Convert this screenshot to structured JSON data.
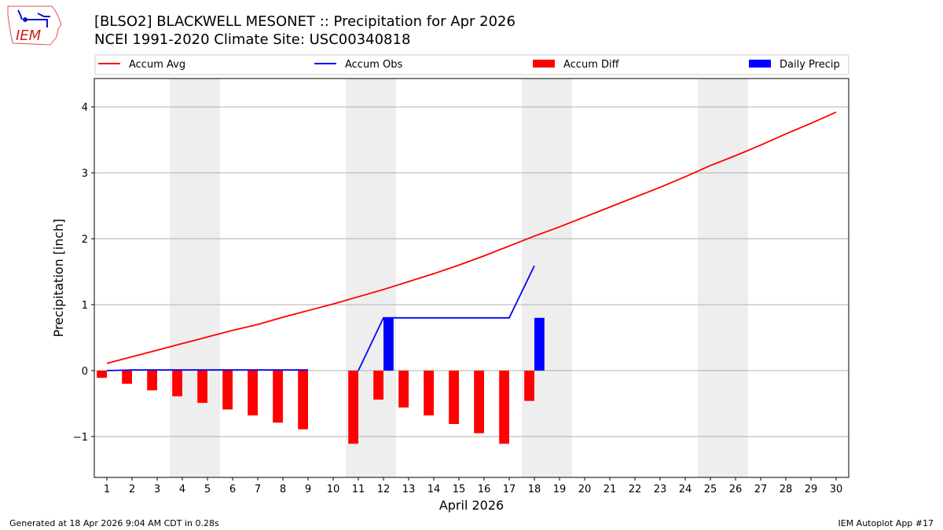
{
  "header": {
    "title_line1": "[BLSO2] BLACKWELL MESONET :: Precipitation for Apr 2026",
    "title_line2": "NCEI 1991-2020 Climate Site: USC00340818",
    "logo_text": "IEM"
  },
  "footer": {
    "left": "Generated at 18 Apr 2026 9:04 AM CDT in 0.28s",
    "right": "IEM Autoplot App #17"
  },
  "chart_data": {
    "type": "bar",
    "xlabel": "April 2026",
    "ylabel": "Precipitation [inch]",
    "xlim": [
      0.5,
      30.5
    ],
    "ylim": [
      -1.62,
      4.43
    ],
    "yticks": [
      -1,
      0,
      1,
      2,
      3,
      4
    ],
    "ytick_labels": [
      "−1",
      "0",
      "1",
      "2",
      "3",
      "4"
    ],
    "grid": "horizontal",
    "legend_placement": "top",
    "weekend_shading": [
      [
        3.5,
        5.5
      ],
      [
        10.5,
        12.5
      ],
      [
        17.5,
        19.5
      ],
      [
        24.5,
        26.5
      ]
    ],
    "days": [
      1,
      2,
      3,
      4,
      5,
      6,
      7,
      8,
      9,
      10,
      11,
      12,
      13,
      14,
      15,
      16,
      17,
      18,
      19,
      20,
      21,
      22,
      23,
      24,
      25,
      26,
      27,
      28,
      29,
      30
    ],
    "series": [
      {
        "name": "Accum Avg",
        "kind": "line",
        "color": "#ff0000",
        "values": [
          0.11,
          0.21,
          0.31,
          0.41,
          0.51,
          0.61,
          0.7,
          0.81,
          0.91,
          1.01,
          1.12,
          1.23,
          1.35,
          1.47,
          1.6,
          1.74,
          1.89,
          2.04,
          2.18,
          2.33,
          2.48,
          2.63,
          2.78,
          2.94,
          3.11,
          3.26,
          3.42,
          3.59,
          3.75,
          3.92
        ]
      },
      {
        "name": "Accum Obs",
        "kind": "line",
        "color": "#0000ff",
        "values": [
          0.0,
          0.01,
          0.01,
          0.01,
          0.01,
          0.01,
          0.01,
          0.01,
          0.01,
          null,
          0.0,
          0.8,
          0.8,
          0.8,
          0.8,
          0.8,
          0.8,
          1.59,
          null,
          null,
          null,
          null,
          null,
          null,
          null,
          null,
          null,
          null,
          null,
          null
        ]
      },
      {
        "name": "Accum Diff",
        "kind": "bar",
        "color": "#ff0000",
        "values": [
          -0.11,
          -0.2,
          -0.3,
          -0.39,
          -0.49,
          -0.59,
          -0.68,
          -0.79,
          -0.89,
          null,
          -1.11,
          -0.44,
          -0.56,
          -0.68,
          -0.81,
          -0.95,
          -1.11,
          -0.46,
          null,
          null,
          null,
          null,
          null,
          null,
          null,
          null,
          null,
          null,
          null,
          null
        ]
      },
      {
        "name": "Daily Precip",
        "kind": "bar",
        "color": "#0000ff",
        "values": [
          0,
          0,
          0,
          0,
          0,
          0,
          0,
          0,
          0,
          null,
          0,
          0.8,
          0,
          0,
          0,
          0,
          0,
          0.8,
          null,
          null,
          null,
          null,
          null,
          null,
          null,
          null,
          null,
          null,
          null,
          null
        ]
      }
    ]
  }
}
